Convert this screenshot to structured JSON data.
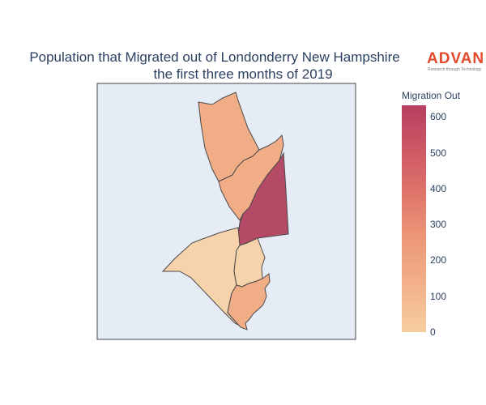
{
  "title": {
    "line1": "Population that Migrated out of Londonderry New Hampshire",
    "line2": "the first three months of 2019"
  },
  "logo": {
    "brand": "ADVAN",
    "tagline": "Research through Technology"
  },
  "colorbar": {
    "title": "Migration Out",
    "ticks": [
      "600",
      "500",
      "400",
      "300",
      "200",
      "100",
      "0"
    ],
    "colorscale": [
      "#f6ce9f",
      "#f2b28a",
      "#ed9a78",
      "#e0776b",
      "#cf5865",
      "#b43f5f"
    ]
  },
  "map": {
    "background": "#e5ecf6",
    "region_colors": {
      "north": "#f1ad86",
      "middle": "#f1ad86",
      "east": "#b54a67",
      "west": "#f6d3ab",
      "center_south": "#f6d3ab",
      "south": "#f1ad86"
    }
  }
}
